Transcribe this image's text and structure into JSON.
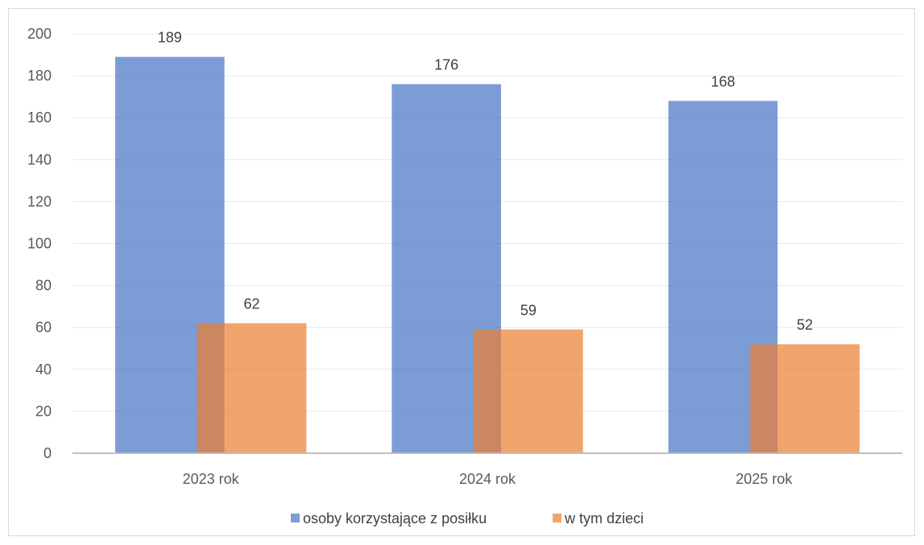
{
  "chart_data": {
    "type": "bar",
    "categories": [
      "2023 rok",
      "2024 rok",
      "2025 rok"
    ],
    "series": [
      {
        "name": "osoby korzystające z posiłku",
        "values": [
          189,
          176,
          168
        ],
        "color": "#4472c4"
      },
      {
        "name": "w tym dzieci",
        "values": [
          62,
          59,
          52
        ],
        "color": "#ed7d31"
      }
    ],
    "ylim": [
      0,
      200
    ],
    "yticks": [
      0,
      20,
      40,
      60,
      80,
      100,
      120,
      140,
      160,
      180,
      200
    ],
    "grid": true,
    "legend": "bottom",
    "bar_opacity": 0.7
  }
}
